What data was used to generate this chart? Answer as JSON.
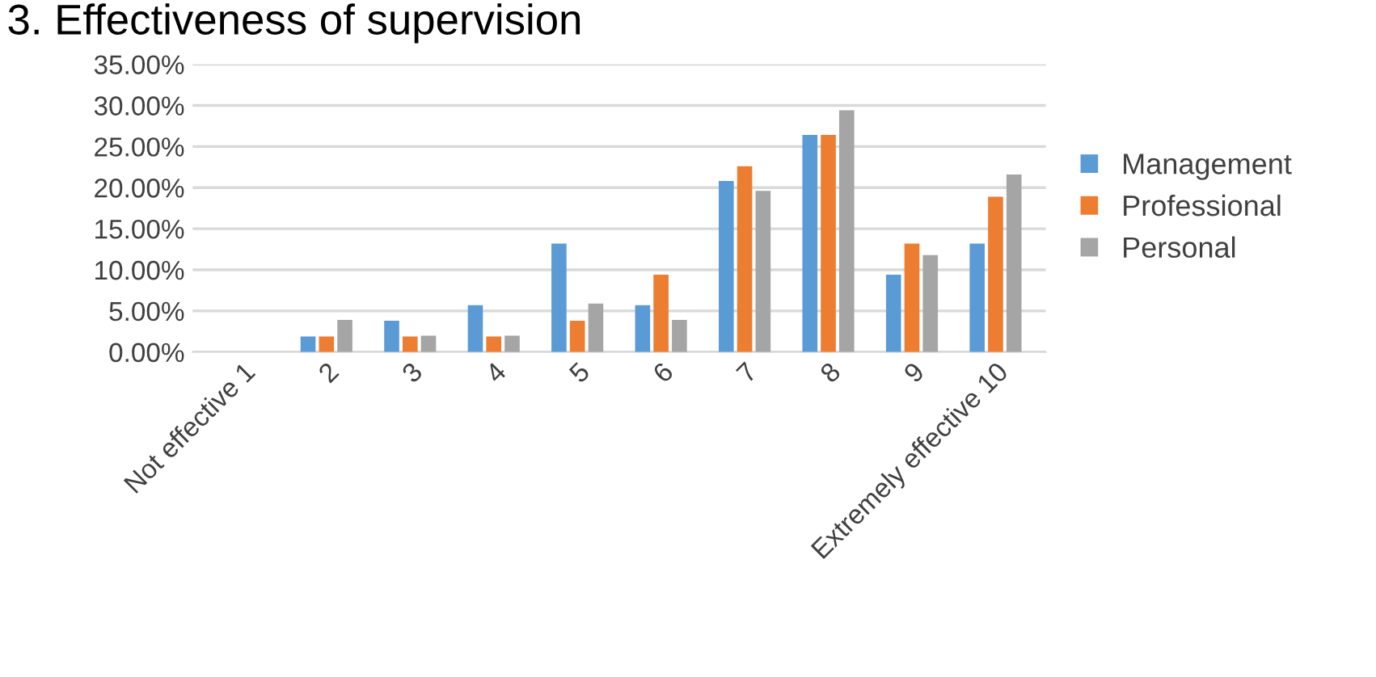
{
  "chart_data": {
    "type": "bar",
    "title": "3. Effectiveness of supervision",
    "categories": [
      "Not effective 1",
      "2",
      "3",
      "4",
      "5",
      "6",
      "7",
      "8",
      "9",
      "Extremely effective 10"
    ],
    "series": [
      {
        "name": "Management",
        "color": "#5b9bd5",
        "values": [
          0,
          1.9,
          3.8,
          5.7,
          13.2,
          5.7,
          20.8,
          26.4,
          9.4,
          13.2
        ]
      },
      {
        "name": "Professional",
        "color": "#ed7d31",
        "values": [
          0,
          1.9,
          1.9,
          1.9,
          3.8,
          9.4,
          22.6,
          26.4,
          13.2,
          18.9
        ]
      },
      {
        "name": "Personal",
        "color": "#a5a5a5",
        "values": [
          0,
          3.9,
          2.0,
          2.0,
          5.9,
          3.9,
          19.6,
          29.4,
          11.8,
          21.6
        ]
      }
    ],
    "ylim": [
      0,
      35
    ],
    "yticks": [
      {
        "value": 0,
        "label": "0.00%"
      },
      {
        "value": 5,
        "label": "5.00%"
      },
      {
        "value": 10,
        "label": "10.00%"
      },
      {
        "value": 15,
        "label": "15.00%"
      },
      {
        "value": 20,
        "label": "20.00%"
      },
      {
        "value": 25,
        "label": "25.00%"
      },
      {
        "value": 30,
        "label": "30.00%"
      },
      {
        "value": 35,
        "label": "35.00%"
      }
    ],
    "grid": "y",
    "legend": "right"
  }
}
